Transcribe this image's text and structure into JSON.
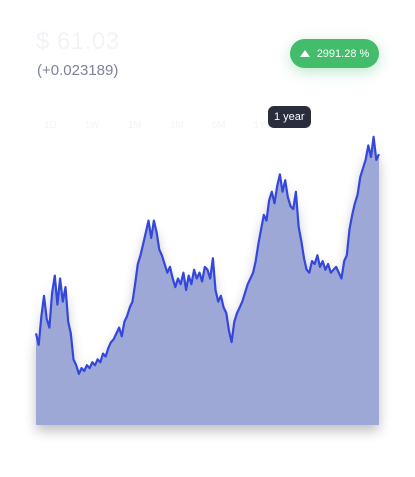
{
  "header": {
    "price": "$ 61.03",
    "change": "(+0.023189)"
  },
  "badge": {
    "icon": "arrow-up-icon",
    "percent": "2991.28 %",
    "color": "#43bd6b"
  },
  "period_tabs": [
    "1D",
    "1W",
    "1M",
    "3M",
    "6M",
    "1Y",
    "ALL"
  ],
  "tooltip": {
    "label": "1 year"
  },
  "chart_data": {
    "type": "area",
    "title": "",
    "xlabel": "",
    "ylabel": "",
    "line_color": "#3447dc",
    "fill_color": "#9da8d6",
    "ylim": [
      0,
      100
    ],
    "series": [
      {
        "name": "price",
        "values": [
          31,
          27,
          37,
          44,
          36,
          33,
          45,
          51,
          41,
          50,
          42,
          47,
          35,
          31,
          22,
          20,
          17,
          19,
          18,
          20,
          19,
          21,
          20,
          22,
          21,
          24,
          23,
          26,
          28,
          29,
          31,
          33,
          30,
          35,
          37,
          40,
          42,
          48,
          55,
          58,
          62,
          66,
          70,
          64,
          70,
          66,
          60,
          58,
          55,
          52,
          54,
          50,
          47,
          50,
          48,
          52,
          46,
          51,
          48,
          53,
          50,
          52,
          49,
          54,
          53,
          50,
          57,
          46,
          42,
          44,
          40,
          38,
          32,
          28,
          35,
          38,
          40,
          42,
          45,
          48,
          50,
          52,
          56,
          62,
          67,
          72,
          70,
          77,
          80,
          76,
          82,
          86,
          80,
          84,
          78,
          75,
          74,
          80,
          68,
          63,
          57,
          53,
          52,
          56,
          55,
          58,
          54,
          56,
          53,
          55,
          52,
          53,
          54,
          52,
          50,
          56,
          58,
          67,
          72,
          76,
          79,
          85,
          88,
          91,
          96,
          92,
          99,
          91,
          93
        ]
      }
    ]
  }
}
